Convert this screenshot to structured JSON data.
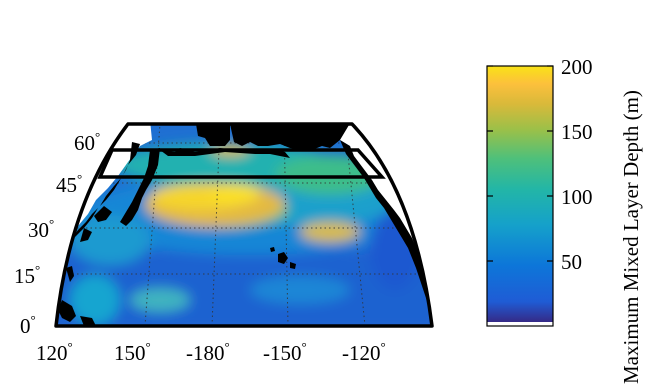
{
  "map": {
    "projection": "North Pacific Ocean map projection",
    "lon_labels": [
      "120",
      "150",
      "-180",
      "-150",
      "-120"
    ],
    "lat_labels": [
      "0",
      "15",
      "30",
      "45",
      "60"
    ],
    "degree_symbol": "°",
    "box_region": {
      "lon_min": 140,
      "lon_max": 235,
      "lat_min": 45,
      "lat_max": 57
    }
  },
  "colorbar": {
    "title": "Maximum Mixed Layer Depth (m)",
    "ticks": [
      "50",
      "100",
      "150",
      "200"
    ],
    "range": [
      0,
      200
    ],
    "colormap": "parula",
    "colors": [
      "#352a87",
      "#1f5cd5",
      "#0d76d9",
      "#15a1ca",
      "#23b6a6",
      "#4fc07a",
      "#9ac049",
      "#d8b93a",
      "#fcc03c",
      "#f9e317"
    ]
  },
  "colors": {
    "land": "#000000",
    "frame": "#000000",
    "background": "#ffffff",
    "ocean_base": "#1f6fd2",
    "high_mld": "#f6d52c"
  }
}
